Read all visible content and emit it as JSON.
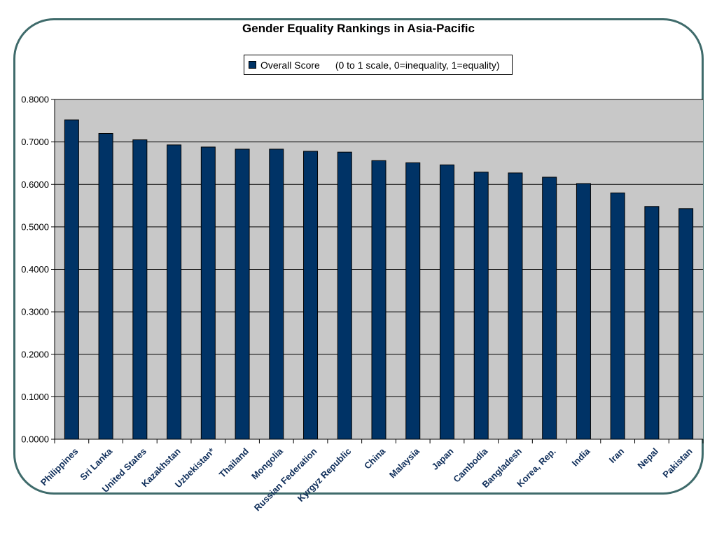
{
  "chart_data": {
    "type": "bar",
    "title": "Gender Equality Rankings in Asia-Pacific",
    "legend": {
      "series": "Overall Score",
      "note": "(0 to 1 scale, 0=inequality, 1=equality)",
      "placement": "top"
    },
    "categories": [
      "Philippines",
      "Sri Lanka",
      "United States",
      "Kazakhstan",
      "Uzbekistan*",
      "Thailand",
      "Mongolia",
      "Russian Federation",
      "Kyrgyz Republic",
      "China",
      "Malaysia",
      "Japan",
      "Cambodia",
      "Bangladesh",
      "Korea, Rep.",
      "India",
      "Iran",
      "Nepal",
      "Pakistan"
    ],
    "series": [
      {
        "name": "Overall Score",
        "values": [
          0.752,
          0.72,
          0.705,
          0.693,
          0.688,
          0.683,
          0.683,
          0.678,
          0.676,
          0.656,
          0.651,
          0.646,
          0.629,
          0.627,
          0.617,
          0.602,
          0.58,
          0.548,
          0.543
        ]
      }
    ],
    "ylim": [
      0,
      0.8
    ],
    "yticks": [
      "0.0000",
      "0.1000",
      "0.2000",
      "0.3000",
      "0.4000",
      "0.5000",
      "0.6000",
      "0.7000",
      "0.8000"
    ],
    "grid": true,
    "colors": {
      "bar": "#003366",
      "plot_background": "#c8c8c8"
    }
  }
}
